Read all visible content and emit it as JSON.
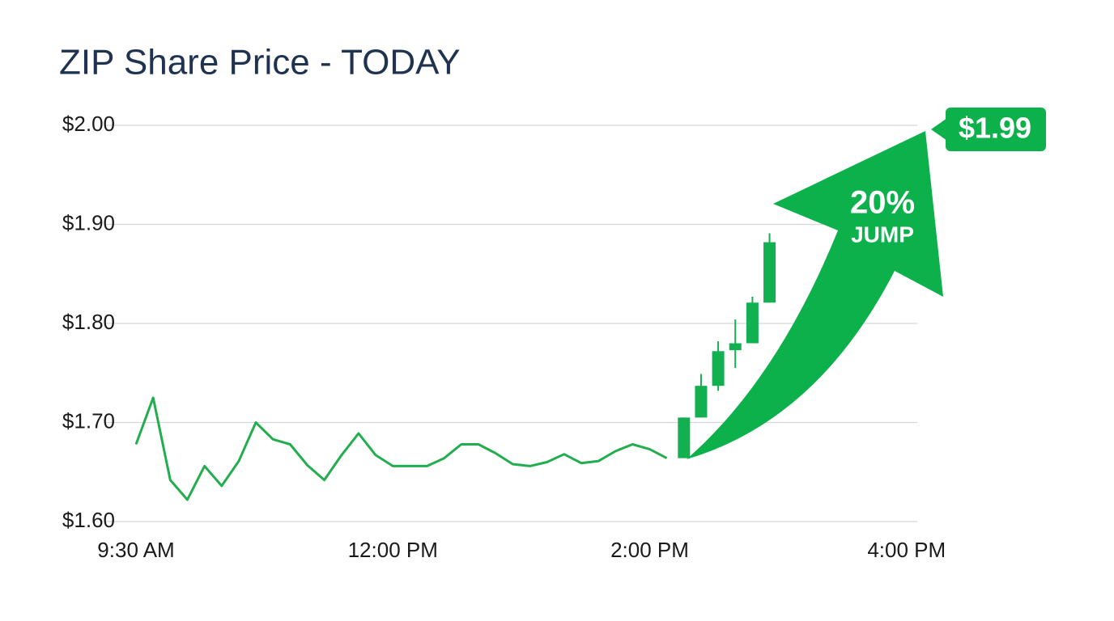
{
  "chart_data": {
    "type": "line",
    "title": "ZIP Share Price - TODAY",
    "categories": [
      "9:30 AM",
      null,
      null,
      null,
      null,
      null,
      null,
      null,
      null,
      null,
      null,
      null,
      null,
      null,
      null,
      "12:00 PM",
      null,
      null,
      null,
      null,
      null,
      null,
      null,
      null,
      null,
      null,
      null,
      null,
      null,
      null,
      "2:00 PM",
      null,
      null,
      null,
      null,
      null,
      null,
      null,
      null,
      null,
      null,
      null,
      null,
      null,
      null,
      "4:00 PM"
    ],
    "ylim": [
      1.6,
      2.0
    ],
    "yticks": [
      {
        "value": 1.6,
        "label": "$1.60"
      },
      {
        "value": 1.7,
        "label": "$1.70"
      },
      {
        "value": 1.8,
        "label": "$1.80"
      },
      {
        "value": 1.9,
        "label": "$1.90"
      },
      {
        "value": 2.0,
        "label": "$2.00"
      }
    ],
    "grid": true,
    "series": [
      {
        "type": "line",
        "color": "#22ad4f",
        "values": [
          1.678,
          1.725,
          1.642,
          1.622,
          1.656,
          1.636,
          1.661,
          1.7,
          1.683,
          1.678,
          1.657,
          1.642,
          1.667,
          1.689,
          1.667,
          1.656,
          1.656,
          1.656,
          1.664,
          1.678,
          1.678,
          1.669,
          1.658,
          1.656,
          1.66,
          1.668,
          1.659,
          1.661,
          1.671,
          1.678,
          1.673,
          1.664,
          null,
          null,
          null,
          null,
          null,
          null,
          null,
          null,
          null,
          null,
          null,
          null,
          null,
          null
        ]
      },
      {
        "type": "candlestick",
        "color": "#12b050",
        "open": [
          null,
          null,
          null,
          null,
          null,
          null,
          null,
          null,
          null,
          null,
          null,
          null,
          null,
          null,
          null,
          null,
          null,
          null,
          null,
          null,
          null,
          null,
          null,
          null,
          null,
          null,
          null,
          null,
          null,
          null,
          null,
          null,
          1.664,
          1.705,
          1.737,
          1.773,
          1.78,
          1.821,
          null,
          null,
          null,
          null,
          null,
          null,
          null,
          null
        ],
        "high": [
          null,
          null,
          null,
          null,
          null,
          null,
          null,
          null,
          null,
          null,
          null,
          null,
          null,
          null,
          null,
          null,
          null,
          null,
          null,
          null,
          null,
          null,
          null,
          null,
          null,
          null,
          null,
          null,
          null,
          null,
          null,
          null,
          1.705,
          1.749,
          1.782,
          1.804,
          1.827,
          1.891,
          null,
          null,
          null,
          null,
          null,
          null,
          null,
          null
        ],
        "low": [
          null,
          null,
          null,
          null,
          null,
          null,
          null,
          null,
          null,
          null,
          null,
          null,
          null,
          null,
          null,
          null,
          null,
          null,
          null,
          null,
          null,
          null,
          null,
          null,
          null,
          null,
          null,
          null,
          null,
          null,
          null,
          null,
          1.664,
          1.705,
          1.732,
          1.755,
          1.78,
          1.821,
          null,
          null,
          null,
          null,
          null,
          null,
          null,
          null
        ],
        "close": [
          null,
          null,
          null,
          null,
          null,
          null,
          null,
          null,
          null,
          null,
          null,
          null,
          null,
          null,
          null,
          null,
          null,
          null,
          null,
          null,
          null,
          null,
          null,
          null,
          null,
          null,
          null,
          null,
          null,
          null,
          null,
          null,
          1.705,
          1.737,
          1.772,
          1.78,
          1.821,
          1.882,
          null,
          null,
          null,
          null,
          null,
          null,
          null,
          null
        ]
      }
    ],
    "annotations": [
      "$1.99",
      "20%",
      "JUMP"
    ]
  }
}
